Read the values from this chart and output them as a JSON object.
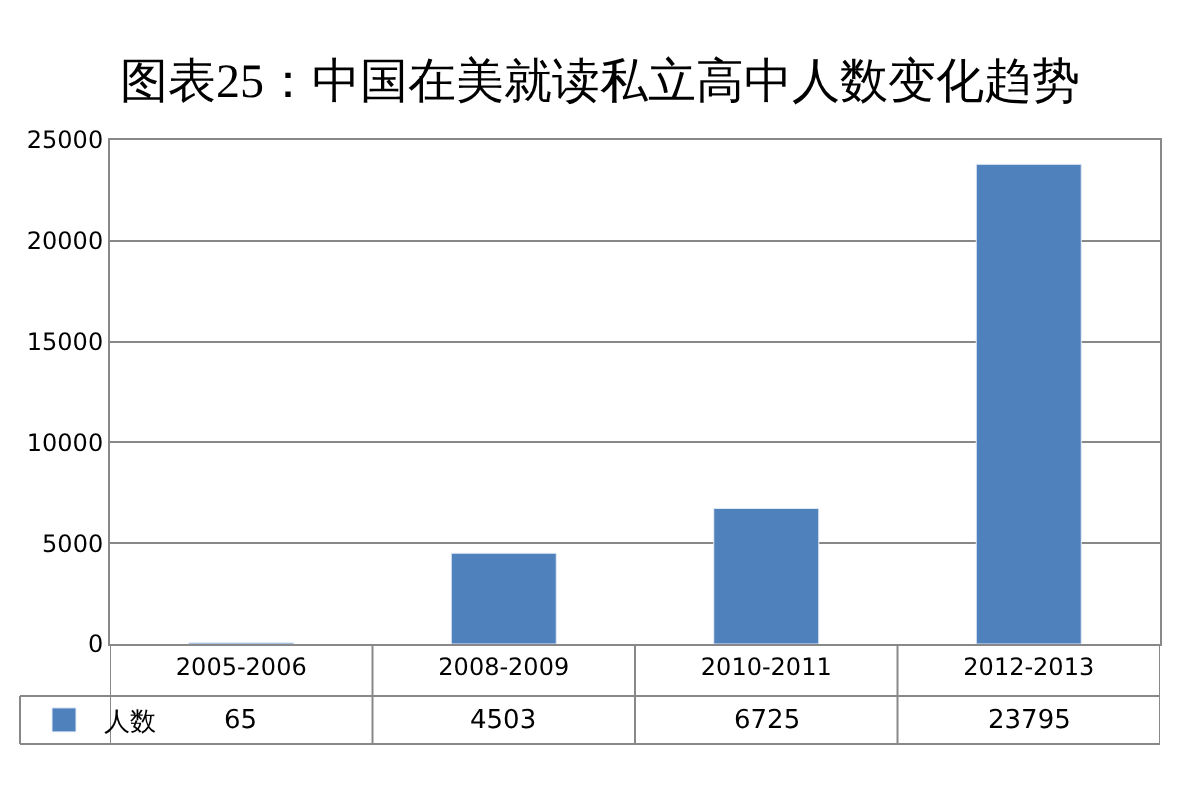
{
  "chart_data": {
    "type": "bar",
    "title": "图表25：中国在美就读私立高中人数变化趋势",
    "categories": [
      "2005-2006",
      "2008-2009",
      "2010-2011",
      "2012-2013"
    ],
    "series": [
      {
        "name": "人数",
        "color": "#4f81bd",
        "values": [
          65,
          4503,
          6725,
          23795
        ]
      }
    ],
    "ylim": [
      0,
      25000
    ],
    "yticks": [
      0,
      5000,
      10000,
      15000,
      20000,
      25000
    ],
    "grid": "y",
    "data_labels": true,
    "legend": "bottom left"
  }
}
